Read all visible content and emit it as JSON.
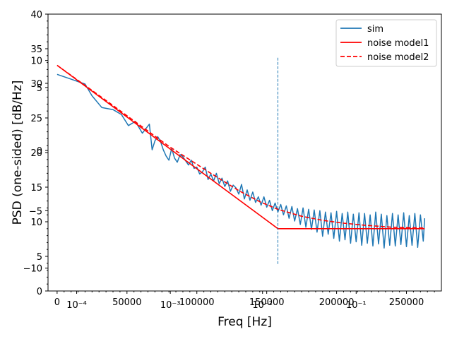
{
  "chart_data": {
    "type": "line",
    "xlabel": "Freq [Hz]",
    "ylabel": "PSD (one-sided) [dB/Hz]",
    "xlim": [
      -6500,
      275000
    ],
    "ylim": [
      0,
      40
    ],
    "x_ticks": [
      0,
      50000,
      100000,
      150000,
      200000,
      250000
    ],
    "x_tick_labels": [
      "0",
      "50000",
      "100000",
      "150000",
      "200000",
      "250000"
    ],
    "y_ticks": [
      0,
      5,
      10,
      15,
      20,
      25,
      30,
      35,
      40
    ],
    "y_tick_labels": [
      "0",
      "5",
      "10",
      "15",
      "20",
      "25",
      "30",
      "35",
      "40"
    ],
    "overlay_ticks": {
      "x": [
        {
          "value": 14000,
          "label": "10⁻⁴"
        },
        {
          "value": 81000,
          "label": "10⁻³"
        },
        {
          "value": 147000,
          "label": "10⁻²"
        },
        {
          "value": 214000,
          "label": "10⁻¹"
        }
      ],
      "y": [
        {
          "value": 33.3,
          "label": "10"
        },
        {
          "value": 29.4,
          "label": "5"
        },
        {
          "value": 20.3,
          "label": "0"
        },
        {
          "value": 11.6,
          "label": "−5"
        },
        {
          "value": 3.3,
          "label": "−10"
        }
      ]
    },
    "legend_position": "top-right",
    "grid": false,
    "series": [
      {
        "name": "sim",
        "color": "#1f77b4",
        "style": "solid",
        "points": [
          [
            0,
            31.3
          ],
          [
            10000,
            30.6
          ],
          [
            20000,
            29.9
          ],
          [
            25000,
            28.2
          ],
          [
            32000,
            26.5
          ],
          [
            40000,
            26.2
          ],
          [
            46000,
            25.5
          ],
          [
            51000,
            23.9
          ],
          [
            56000,
            24.5
          ],
          [
            61000,
            22.8
          ],
          [
            66000,
            24.1
          ],
          [
            68000,
            20.4
          ],
          [
            70000,
            21.7
          ],
          [
            72000,
            22.3
          ],
          [
            74000,
            21.6
          ],
          [
            76000,
            20.4
          ],
          [
            78000,
            19.5
          ],
          [
            80000,
            18.9
          ],
          [
            82000,
            20.6
          ],
          [
            84000,
            19.2
          ],
          [
            86000,
            18.6
          ],
          [
            88000,
            19.7
          ],
          [
            90000,
            19.4
          ],
          [
            92000,
            18.8
          ],
          [
            94000,
            18.2
          ],
          [
            96000,
            18.9
          ],
          [
            98000,
            17.7
          ],
          [
            100000,
            17.9
          ],
          [
            102000,
            16.9
          ],
          [
            104000,
            17.2
          ],
          [
            106000,
            17.9
          ],
          [
            108000,
            16.1
          ],
          [
            110000,
            16.9
          ],
          [
            112000,
            15.9
          ],
          [
            114000,
            17.0
          ],
          [
            116000,
            15.5
          ],
          [
            118000,
            16.3
          ],
          [
            120000,
            15.1
          ],
          [
            122000,
            15.9
          ],
          [
            124000,
            14.4
          ],
          [
            126000,
            15.3
          ],
          [
            128000,
            14.9
          ],
          [
            130000,
            14.0
          ],
          [
            132000,
            15.4
          ],
          [
            134000,
            13.3
          ],
          [
            136000,
            14.6
          ],
          [
            138000,
            13.1
          ],
          [
            140000,
            14.3
          ],
          [
            142000,
            12.8
          ],
          [
            144000,
            13.6
          ],
          [
            146000,
            12.4
          ],
          [
            148000,
            13.6
          ],
          [
            150000,
            12.1
          ],
          [
            152000,
            13.1
          ],
          [
            154000,
            11.6
          ],
          [
            156000,
            12.7
          ],
          [
            158000,
            11.4
          ],
          [
            160000,
            12.5
          ],
          [
            162000,
            11.0
          ],
          [
            164000,
            12.3
          ],
          [
            166000,
            10.5
          ],
          [
            168000,
            12.2
          ],
          [
            170000,
            10.1
          ],
          [
            172000,
            11.9
          ],
          [
            174000,
            9.6
          ],
          [
            176000,
            12.0
          ],
          [
            178000,
            9.2
          ],
          [
            180000,
            11.8
          ],
          [
            182000,
            8.9
          ],
          [
            184000,
            11.7
          ],
          [
            186000,
            8.5
          ],
          [
            188000,
            11.6
          ],
          [
            190000,
            7.9
          ],
          [
            192000,
            11.4
          ],
          [
            194000,
            8.2
          ],
          [
            196000,
            11.3
          ],
          [
            198000,
            7.6
          ],
          [
            200000,
            11.5
          ],
          [
            202000,
            7.2
          ],
          [
            204000,
            11.2
          ],
          [
            206000,
            7.4
          ],
          [
            208000,
            11.4
          ],
          [
            210000,
            6.9
          ],
          [
            212000,
            11.1
          ],
          [
            214000,
            7.1
          ],
          [
            216000,
            11.3
          ],
          [
            218000,
            6.6
          ],
          [
            220000,
            11.2
          ],
          [
            222000,
            6.9
          ],
          [
            224000,
            11.0
          ],
          [
            226000,
            6.5
          ],
          [
            228000,
            11.4
          ],
          [
            230000,
            6.8
          ],
          [
            232000,
            11.1
          ],
          [
            234000,
            6.2
          ],
          [
            236000,
            10.9
          ],
          [
            238000,
            6.6
          ],
          [
            240000,
            11.2
          ],
          [
            242000,
            6.5
          ],
          [
            244000,
            11.0
          ],
          [
            246000,
            6.7
          ],
          [
            248000,
            11.3
          ],
          [
            250000,
            6.4
          ],
          [
            252000,
            10.9
          ],
          [
            254000,
            6.6
          ],
          [
            256000,
            11.2
          ],
          [
            258000,
            6.3
          ],
          [
            260000,
            11.0
          ],
          [
            262000,
            7.2
          ],
          [
            263000,
            10.5
          ]
        ]
      },
      {
        "name": "noise model1",
        "color": "#ff0000",
        "style": "solid",
        "points": [
          [
            0,
            32.6
          ],
          [
            158000,
            9.0
          ],
          [
            263000,
            9.0
          ]
        ]
      },
      {
        "name": "noise model2",
        "color": "#ff0000",
        "style": "dashed",
        "points": [
          [
            0,
            32.6
          ],
          [
            40000,
            26.8
          ],
          [
            80000,
            20.9
          ],
          [
            110000,
            17.0
          ],
          [
            130000,
            14.5
          ],
          [
            145000,
            12.9
          ],
          [
            158000,
            11.8
          ],
          [
            175000,
            10.8
          ],
          [
            190000,
            10.2
          ],
          [
            205000,
            9.8
          ],
          [
            220000,
            9.5
          ],
          [
            240000,
            9.2
          ],
          [
            263000,
            9.1
          ]
        ]
      }
    ],
    "vline": {
      "x": 158000,
      "y_range": [
        3.9,
        33.8
      ],
      "color": "#1f77b4",
      "style": "dashed"
    }
  }
}
